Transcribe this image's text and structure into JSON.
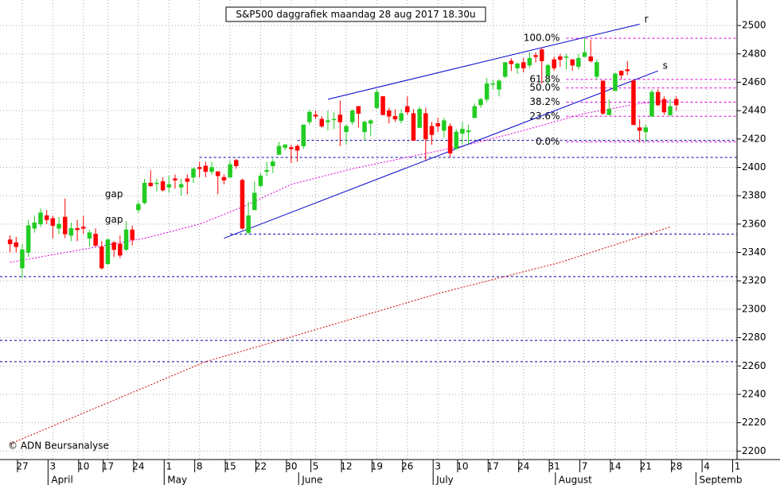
{
  "chart_data": {
    "type": "candlestick",
    "title": "S&P500 daggrafiek maandag 28 aug 2017 18.30u",
    "copyright": "© ADN Beursanalyse",
    "up_color": "#22cc22",
    "down_color": "#ff0000",
    "categories": [
      null,
      null,
      "27",
      null,
      null,
      null,
      null,
      "3",
      null,
      null,
      null,
      null,
      "10",
      null,
      null,
      null,
      "17",
      null,
      null,
      null,
      null,
      "24",
      null,
      null,
      null,
      null,
      "1",
      null,
      null,
      null,
      null,
      "8",
      null,
      null,
      null,
      null,
      "15",
      null,
      null,
      null,
      null,
      "22",
      null,
      null,
      null,
      null,
      "30",
      null,
      null,
      null,
      "5",
      null,
      null,
      null,
      null,
      "12",
      null,
      null,
      null,
      null,
      "19",
      null,
      null,
      null,
      null,
      "26",
      null,
      null,
      null,
      null,
      "3",
      null,
      null,
      null,
      "10",
      null,
      null,
      null,
      null,
      "17",
      null,
      null,
      null,
      null,
      "24",
      null,
      null,
      null,
      null,
      "31",
      null,
      null,
      null,
      null,
      "7",
      null,
      null,
      null,
      null,
      "14",
      null,
      null,
      null,
      null,
      "21",
      null,
      null,
      null,
      null,
      "28",
      null,
      null,
      null,
      null,
      "4",
      null,
      null,
      null,
      null,
      "1"
    ],
    "open": [
      2349,
      2347,
      2329,
      2340,
      2357,
      2360,
      2366,
      2364,
      2357,
      2365,
      2352,
      2357,
      2358,
      2350,
      2353,
      2344,
      2332,
      2347,
      2346,
      2342,
      2356,
      2370,
      2375,
      2389,
      2389,
      2390,
      2386,
      2392,
      2386,
      2392,
      2393,
      2400,
      2401,
      2397,
      2397,
      2393,
      2393,
      2405,
      2391,
      2354,
      2370,
      2387,
      2397,
      2401,
      2409,
      2414,
      2414,
      2415,
      2415,
      2432,
      2437,
      2434,
      2432,
      2434,
      2437,
      2425,
      2432,
      2443,
      2425,
      2431,
      2442,
      2450,
      2440,
      2436,
      2433,
      2443,
      2438,
      2428,
      2438,
      2429,
      2431,
      2426,
      2429,
      2413,
      2424,
      2425,
      2435,
      2444,
      2448,
      2459,
      2455,
      2464,
      2475,
      2470,
      2474,
      2472,
      2479,
      2483,
      2465,
      2476,
      2478,
      2478,
      2476,
      2471,
      2478,
      2478,
      2464,
      2461,
      2437,
      2454,
      2468,
      2469,
      2461,
      2428,
      2425,
      2436,
      2453,
      2448,
      2437,
      2448,
      null,
      null,
      null,
      null,
      null,
      null,
      null,
      null,
      null,
      null
    ],
    "high": [
      2352,
      2351,
      2346,
      2363,
      2366,
      2371,
      2370,
      2366,
      2365,
      2378,
      2361,
      2363,
      2366,
      2356,
      2357,
      2348,
      2350,
      2348,
      2352,
      2362,
      2359,
      2376,
      2392,
      2398,
      2392,
      2393,
      2394,
      2395,
      2392,
      2395,
      2400,
      2404,
      2404,
      2404,
      2397,
      2395,
      2405,
      2406,
      2392,
      2376,
      2390,
      2396,
      2404,
      2406,
      2418,
      2416,
      2416,
      2416,
      2430,
      2441,
      2440,
      2436,
      2440,
      2439,
      2447,
      2430,
      2441,
      2443,
      2433,
      2434,
      2455,
      2450,
      2442,
      2441,
      2441,
      2450,
      2441,
      2443,
      2442,
      2432,
      2435,
      2435,
      2431,
      2427,
      2432,
      2430,
      2445,
      2449,
      2463,
      2462,
      2462,
      2474,
      2477,
      2474,
      2477,
      2481,
      2481,
      2484,
      2473,
      2478,
      2480,
      2480,
      2476,
      2480,
      2491,
      2490,
      2476,
      2461,
      2448,
      2467,
      2468,
      2475,
      2462,
      2434,
      2430,
      2455,
      2455,
      2450,
      2448,
      2450,
      null,
      null,
      null,
      null,
      null,
      null,
      null,
      null,
      null,
      null
    ],
    "low": [
      2340,
      2340,
      2322,
      2337,
      2354,
      2358,
      2360,
      2350,
      2353,
      2350,
      2348,
      2348,
      2353,
      2344,
      2344,
      2328,
      2331,
      2337,
      2336,
      2341,
      2345,
      2368,
      2374,
      2386,
      2383,
      2383,
      2382,
      2385,
      2380,
      2381,
      2389,
      2393,
      2393,
      2395,
      2381,
      2388,
      2393,
      2399,
      2356,
      2353,
      2370,
      2386,
      2394,
      2396,
      2409,
      2412,
      2403,
      2404,
      2413,
      2430,
      2434,
      2428,
      2426,
      2427,
      2415,
      2416,
      2430,
      2428,
      2419,
      2422,
      2441,
      2437,
      2431,
      2432,
      2431,
      2437,
      2419,
      2428,
      2405,
      2416,
      2425,
      2421,
      2407,
      2413,
      2416,
      2416,
      2435,
      2442,
      2446,
      2455,
      2450,
      2463,
      2468,
      2466,
      2467,
      2470,
      2474,
      2459,
      2459,
      2468,
      2471,
      2469,
      2468,
      2469,
      2478,
      2474,
      2462,
      2437,
      2437,
      2454,
      2462,
      2465,
      2430,
      2418,
      2418,
      2436,
      2443,
      2437,
      2436,
      2440,
      null,
      null,
      null,
      null,
      null,
      null,
      null,
      null,
      null,
      null
    ],
    "close": [
      2346,
      2344,
      2342,
      2359,
      2361,
      2368,
      2363,
      2359,
      2360,
      2353,
      2357,
      2356,
      2357,
      2354,
      2345,
      2329,
      2349,
      2342,
      2338,
      2356,
      2349,
      2374,
      2389,
      2387,
      2389,
      2384,
      2388,
      2391,
      2388,
      2390,
      2399,
      2399,
      2397,
      2400,
      2394,
      2391,
      2402,
      2401,
      2357,
      2366,
      2382,
      2394,
      2398,
      2404,
      2415,
      2416,
      2413,
      2412,
      2430,
      2439,
      2436,
      2429,
      2433,
      2434,
      2432,
      2429,
      2440,
      2438,
      2432,
      2433,
      2453,
      2437,
      2436,
      2434,
      2438,
      2439,
      2419,
      2441,
      2420,
      2423,
      2429,
      2433,
      2410,
      2425,
      2427,
      2426,
      2443,
      2448,
      2459,
      2459,
      2461,
      2474,
      2473,
      2473,
      2470,
      2477,
      2478,
      2475,
      2472,
      2470,
      2476,
      2478,
      2472,
      2477,
      2481,
      2475,
      2474,
      2438,
      2441,
      2466,
      2465,
      2468,
      2430,
      2426,
      2428,
      2453,
      2444,
      2439,
      2443,
      2444,
      null,
      null,
      null,
      null,
      null,
      null,
      null,
      null,
      null,
      null
    ],
    "months": [
      {
        "label": "April",
        "at": 7
      },
      {
        "label": "May",
        "at": 26
      },
      {
        "label": "June",
        "at": 48
      },
      {
        "label": "July",
        "at": 70
      },
      {
        "label": "August",
        "at": 90
      },
      {
        "label": "Septemb",
        "at": 113
      }
    ],
    "ylim": [
      2194,
      2518
    ],
    "yticks": [
      2200,
      2220,
      2240,
      2260,
      2280,
      2300,
      2320,
      2340,
      2360,
      2380,
      2400,
      2420,
      2440,
      2460,
      2480,
      2500
    ],
    "grid": true,
    "moving_averages": [
      {
        "color": "#dd00dd",
        "x": [
          0,
          13,
          22,
          31,
          38,
          46,
          56,
          66,
          75,
          84,
          94,
          103,
          108
        ],
        "values": [
          2333,
          2343,
          2350,
          2360,
          2372,
          2388,
          2399,
          2408,
          2416,
          2426,
          2438,
          2445,
          2447
        ]
      },
      {
        "color": "#cc0000",
        "x": [
          0,
          32,
          44,
          70,
          90,
          108
        ],
        "values": [
          2205,
          2263,
          2278,
          2311,
          2333,
          2358
        ]
      }
    ],
    "support_lines": [
      {
        "value": 2419,
        "from": 47
      },
      {
        "value": 2407,
        "from": 31
      },
      {
        "value": 2353,
        "from": 36
      },
      {
        "value": 2323
      },
      {
        "value": 2278
      },
      {
        "value": 2263
      }
    ],
    "support_color": "#0000aa",
    "trend_lines": [
      {
        "label": "r",
        "x": [
          52,
          103
        ],
        "values": [
          2448,
          2501
        ]
      },
      {
        "label": "s",
        "x": [
          35,
          106
        ],
        "values": [
          2350,
          2468
        ]
      }
    ],
    "trend_color": "#0000cc",
    "fib_color": "#dd00dd",
    "fib_from": 91,
    "fibonacci": [
      {
        "label": "100.0%",
        "value": 2491
      },
      {
        "label": "61.8%",
        "value": 2462
      },
      {
        "label": "50.0%",
        "value": 2456
      },
      {
        "label": "38.2%",
        "value": 2446
      },
      {
        "label": "23.6%",
        "value": 2436
      },
      {
        "label": "0.0%",
        "value": 2418
      }
    ],
    "annotations": [
      {
        "text": "gap",
        "x": 17,
        "y": 2381
      },
      {
        "text": "gap",
        "x": 17,
        "y": 2363
      }
    ]
  }
}
